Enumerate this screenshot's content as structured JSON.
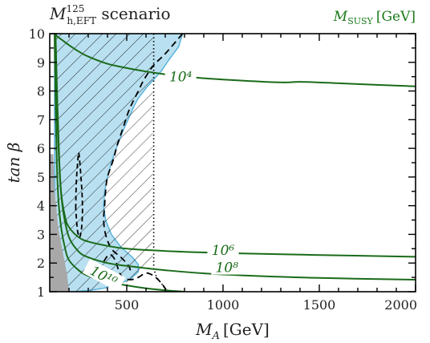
{
  "chart_data": {
    "type": "line",
    "title": {
      "base": "M",
      "sup": "125",
      "sub": "h,EFT",
      "text": " scenario"
    },
    "legend": {
      "base": "M",
      "sub": "SUSY",
      "unit": "[GeV]",
      "color": "#1a7a1a",
      "placement": "top-right"
    },
    "xlabel": {
      "base": "M",
      "sub": "A",
      "unit": "[GeV]"
    },
    "ylabel": "tan β",
    "xlim": [
      100,
      2000
    ],
    "ylim": [
      1,
      10
    ],
    "xticks": [
      500,
      1000,
      1500,
      2000
    ],
    "yticks": [
      1,
      2,
      3,
      4,
      5,
      6,
      7,
      8,
      9,
      10
    ],
    "xtick_labels": [
      "500",
      "1000",
      "1500",
      "2000"
    ],
    "ytick_labels": [
      "1",
      "2",
      "3",
      "4",
      "5",
      "6",
      "7",
      "8",
      "9",
      "10"
    ],
    "colors": {
      "contour": "#1a6b1a",
      "blue_fill": "#b9e0f0",
      "blue_edge": "#5ab4dd",
      "grey_fill": "#a8a8a8",
      "dashed": "#000000"
    },
    "series": [
      {
        "label": "10⁴",
        "label_pos": [
          780,
          8.5
        ],
        "x": [
          125,
          140,
          160,
          200,
          250,
          300,
          400,
          500,
          600,
          700,
          800,
          1000,
          1300,
          1400,
          1600,
          2000
        ],
        "y": [
          10.0,
          9.9,
          9.8,
          9.6,
          9.38,
          9.2,
          8.95,
          8.8,
          8.68,
          8.58,
          8.5,
          8.4,
          8.3,
          8.32,
          8.27,
          8.16
        ]
      },
      {
        "label": "10⁶",
        "label_pos": [
          1000,
          2.45
        ],
        "x": [
          130,
          140,
          150,
          160,
          180,
          200,
          250,
          300,
          400,
          500,
          700,
          1000,
          1500,
          2000
        ],
        "y": [
          10.0,
          7.5,
          5.5,
          4.4,
          3.6,
          3.25,
          2.9,
          2.75,
          2.6,
          2.5,
          2.42,
          2.35,
          2.28,
          2.22
        ]
      },
      {
        "label": "10⁸",
        "label_pos": [
          1020,
          1.85
        ],
        "x": [
          130,
          140,
          155,
          170,
          200,
          250,
          300,
          400,
          500,
          700,
          1000,
          1500,
          2000
        ],
        "y": [
          10.0,
          7.0,
          4.8,
          3.8,
          2.9,
          2.4,
          2.2,
          2.0,
          1.9,
          1.75,
          1.6,
          1.48,
          1.42
        ]
      },
      {
        "label": "10¹⁰",
        "label_pos": [
          380,
          1.55
        ],
        "x": [
          125,
          135,
          145,
          160,
          180,
          200,
          250,
          300,
          400,
          500,
          600,
          700,
          800
        ],
        "y": [
          10.0,
          6.0,
          4.2,
          3.2,
          2.5,
          2.1,
          1.75,
          1.55,
          1.35,
          1.22,
          1.12,
          1.05,
          1.0
        ]
      }
    ],
    "regions": {
      "hatched": {
        "x": [
          125,
          635,
          635,
          600,
          560,
          520,
          480,
          440,
          400,
          370,
          340,
          310,
          290,
          270,
          240,
          200,
          160,
          125
        ],
        "y": [
          10.0,
          10.0,
          2.0,
          1.7,
          1.55,
          1.4,
          1.28,
          1.2,
          1.12,
          1.07,
          1.04,
          1.02,
          1.01,
          1.0,
          1.0,
          1.0,
          1.0,
          1.0
        ]
      },
      "blue": {
        "x": [
          125,
          790,
          770,
          720,
          680,
          640,
          600,
          560,
          540,
          520,
          500,
          480,
          460,
          440,
          420,
          400,
          385,
          380,
          390,
          420,
          470,
          530,
          560,
          560,
          520,
          470,
          420,
          380,
          340,
          300,
          260,
          230,
          200,
          180,
          160,
          140,
          125
        ],
        "y": [
          10.0,
          10.0,
          9.55,
          9.1,
          8.7,
          8.4,
          8.1,
          7.75,
          7.5,
          7.2,
          6.9,
          6.6,
          6.25,
          5.9,
          5.5,
          5.0,
          4.5,
          4.0,
          3.5,
          3.0,
          2.55,
          2.2,
          1.95,
          1.7,
          1.45,
          1.3,
          1.2,
          1.12,
          1.08,
          1.04,
          1.02,
          1.0,
          1.0,
          1.0,
          1.0,
          1.0,
          1.0
        ]
      },
      "grey": {
        "x": [
          100,
          118,
          125,
          145,
          170,
          190,
          200,
          100
        ],
        "y": [
          5.8,
          5.8,
          4.5,
          3.2,
          2.3,
          1.6,
          1.0,
          1.0
        ]
      }
    },
    "lines": {
      "dotted_vertical": {
        "x": [
          640,
          640,
          655,
          690,
          710
        ],
        "y": [
          10.0,
          1.8,
          1.5,
          1.2,
          1.0
        ]
      },
      "dashed_boundary": {
        "x": [
          790,
          700,
          640,
          590,
          560,
          530,
          510,
          490,
          470,
          450,
          430,
          400,
          390,
          385,
          380,
          390,
          420,
          470,
          510,
          520
        ],
        "y": [
          10.0,
          9.3,
          8.9,
          8.4,
          8.0,
          7.6,
          7.3,
          6.9,
          6.5,
          6.1,
          5.6,
          5.0,
          4.5,
          4.0,
          3.5,
          3.0,
          2.5,
          2.2,
          1.9,
          1.7
        ]
      },
      "dashed_island": {
        "x": [
          235,
          238,
          245,
          250,
          255,
          262,
          268,
          270,
          265,
          255,
          245,
          238
        ],
        "y": [
          3.9,
          4.8,
          5.5,
          5.85,
          5.6,
          5.0,
          4.4,
          3.8,
          3.2,
          2.9,
          3.1,
          3.6
        ]
      },
      "dashed_lower": {
        "x": [
          350,
          380,
          410,
          440,
          460,
          480,
          520,
          560,
          600,
          640,
          680,
          710
        ],
        "y": [
          1.75,
          2.05,
          2.3,
          2.1,
          1.7,
          1.5,
          1.42,
          1.5,
          1.65,
          1.55,
          1.3,
          1.0
        ]
      }
    }
  }
}
